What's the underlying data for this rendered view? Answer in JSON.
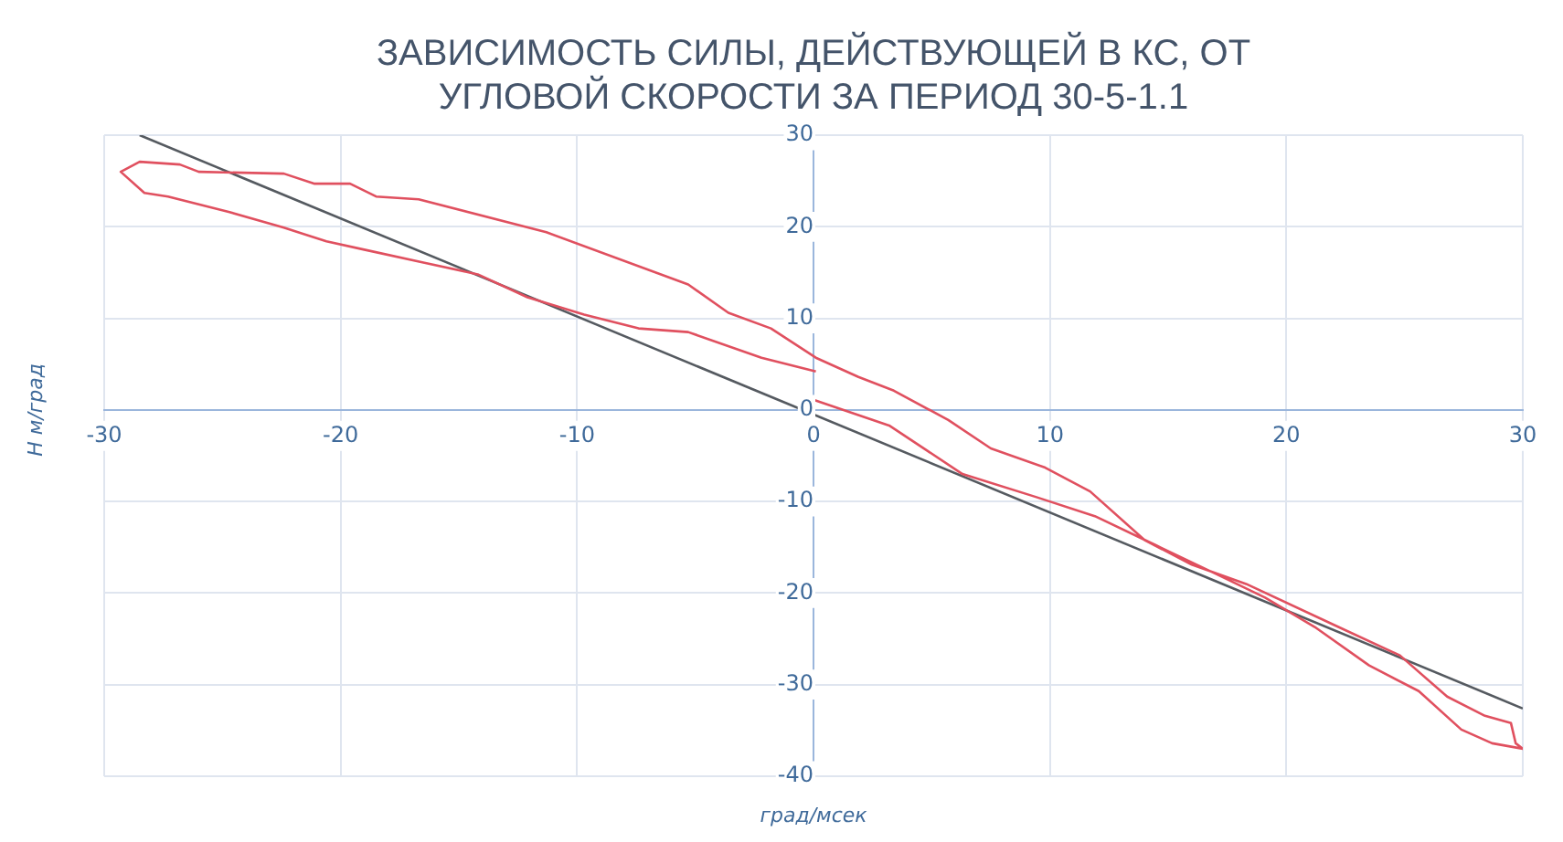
{
  "chart_data": {
    "type": "line",
    "title": "ЗАВИСИМОСТЬ СИЛЫ, ДЕЙСТВУЮЩЕЙ В КС, ОТ\nУГЛОВОЙ СКОРОСТИ ЗА ПЕРИОД 30-5-1.1",
    "xlabel": "град/мсек",
    "ylabel": "Н м/град",
    "xlim": [
      -30,
      30
    ],
    "ylim": [
      -40,
      30
    ],
    "xticks": [
      -30,
      -20,
      -10,
      0,
      10,
      20,
      30
    ],
    "yticks": [
      -40,
      -30,
      -20,
      -10,
      0,
      10,
      20,
      30
    ],
    "grid": true,
    "marker": "none",
    "line_style": "solid",
    "series": [
      {
        "color": "#e0505f",
        "x": [
          0.1,
          -2.2,
          -5.3,
          -7.4,
          -9.7,
          -12.1,
          -14.2,
          -16.5,
          -19,
          -20.6,
          -22.4,
          -24.7,
          -27.3,
          -28.3,
          -29.3,
          -28.5,
          -26.8,
          -26,
          -22.4,
          -21.1,
          -19.6,
          -18.5,
          -16.7,
          -11.3,
          -5.3,
          -3.6,
          -1.8,
          0.1,
          1.9,
          3.4,
          5.7,
          7.5,
          9.8,
          11.7,
          14,
          16,
          18.3,
          22.2,
          24.8,
          26.8,
          28.4,
          29.5,
          29.7,
          30,
          28.7,
          27.4,
          25.6,
          23.5,
          21.2,
          19.1,
          17.1,
          14.5,
          11.9,
          9.4,
          6.3,
          3.2,
          0
        ],
        "values": [
          4.2,
          5.7,
          8.5,
          8.9,
          10.4,
          12.3,
          14.8,
          16.1,
          17.5,
          18.4,
          19.9,
          21.6,
          23.3,
          23.7,
          26,
          27.1,
          26.8,
          26,
          25.8,
          24.7,
          24.7,
          23.3,
          23,
          19.4,
          13.7,
          10.6,
          8.9,
          5.7,
          3.6,
          2.1,
          -1.1,
          -4.2,
          -6.3,
          -8.9,
          -14.2,
          -16.9,
          -19,
          -23.7,
          -26.8,
          -31.3,
          -33.4,
          -34.2,
          -36.4,
          -37,
          -36.4,
          -34.9,
          -30.7,
          -27.9,
          -23.7,
          -20.5,
          -18,
          -14.8,
          -11.6,
          -9.5,
          -7,
          -1.7,
          1.1
        ]
      },
      {
        "color": "#555a60",
        "x": [
          -28.5,
          30
        ],
        "values": [
          30,
          -32.6
        ]
      }
    ]
  }
}
